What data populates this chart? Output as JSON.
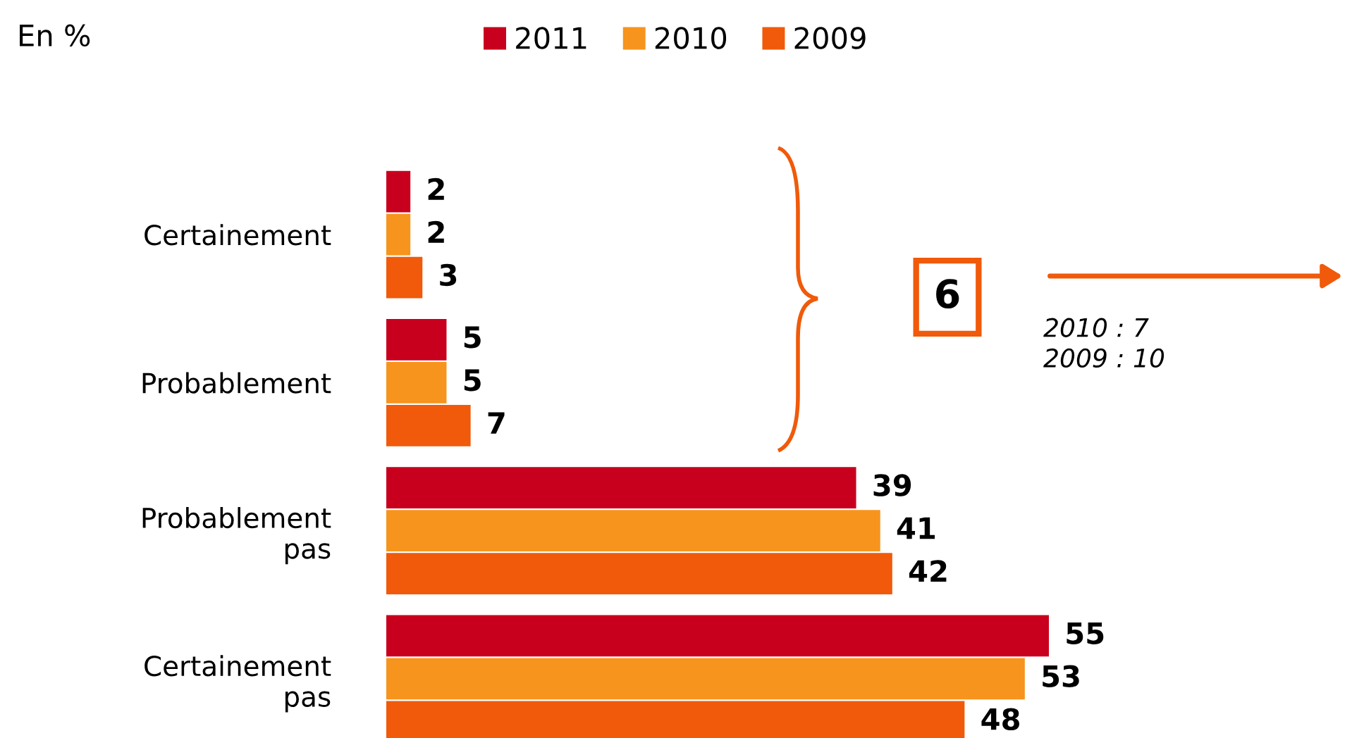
{
  "chart_data": {
    "type": "bar",
    "orientation": "horizontal",
    "data_labels": true,
    "legend": "top",
    "categories": [
      "Certainement",
      "Probablement",
      "Probablement pas",
      "Certainement pas"
    ],
    "series": [
      {
        "name": "2011",
        "color": "#c8001e",
        "values": [
          2,
          5,
          39,
          55
        ]
      },
      {
        "name": "2010",
        "color": "#f7941d",
        "values": [
          2,
          5,
          41,
          53
        ]
      },
      {
        "name": "2009",
        "color": "#f05a0a",
        "values": [
          3,
          7,
          42,
          48
        ]
      }
    ],
    "annotations": [
      "En %",
      "6",
      "2010 : 7\n2009 : 10"
    ]
  }
}
